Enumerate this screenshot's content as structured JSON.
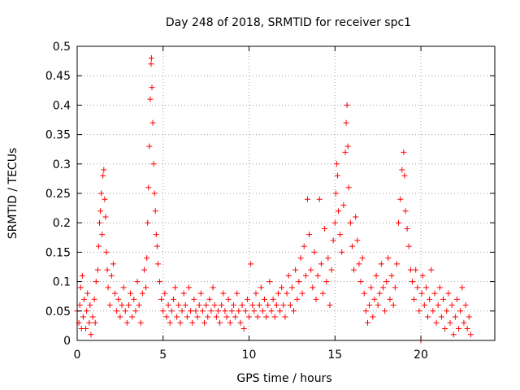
{
  "chart_data": {
    "type": "scatter",
    "title": "Day 248 of 2018, SRMTID for receiver spc1",
    "xlabel": "GPS time / hours",
    "ylabel": "SRMTID / TECUs",
    "xlim": [
      0,
      24.3
    ],
    "ylim": [
      0,
      0.5
    ],
    "xticks": [
      0,
      5,
      10,
      15,
      20
    ],
    "xtick_labels": [
      "0",
      "5",
      "10",
      "15",
      "20"
    ],
    "yticks": [
      0,
      0.05,
      0.1,
      0.15,
      0.2,
      0.25,
      0.3,
      0.35,
      0.4,
      0.45,
      0.5
    ],
    "ytick_labels": [
      "0",
      "0.05",
      "0.1",
      "0.15",
      "0.2",
      "0.25",
      "0.3",
      "0.35",
      "0.4",
      "0.45",
      "0.5"
    ],
    "grid": true,
    "marker": "+",
    "color": "#ff0000",
    "series": [
      {
        "name": "spc1",
        "points": [
          [
            0.0,
            0.05
          ],
          [
            0.1,
            0.03
          ],
          [
            0.15,
            0.06
          ],
          [
            0.2,
            0.09
          ],
          [
            0.25,
            0.02
          ],
          [
            0.3,
            0.11
          ],
          [
            0.35,
            0.04
          ],
          [
            0.4,
            0.07
          ],
          [
            0.5,
            0.02
          ],
          [
            0.55,
            0.05
          ],
          [
            0.6,
            0.08
          ],
          [
            0.7,
            0.03
          ],
          [
            0.75,
            0.06
          ],
          [
            0.8,
            0.01
          ],
          [
            0.9,
            0.04
          ],
          [
            1.0,
            0.07
          ],
          [
            1.05,
            0.03
          ],
          [
            1.1,
            0.1
          ],
          [
            1.2,
            0.12
          ],
          [
            1.25,
            0.16
          ],
          [
            1.3,
            0.2
          ],
          [
            1.35,
            0.22
          ],
          [
            1.4,
            0.25
          ],
          [
            1.45,
            0.18
          ],
          [
            1.5,
            0.28
          ],
          [
            1.55,
            0.29
          ],
          [
            1.6,
            0.24
          ],
          [
            1.65,
            0.21
          ],
          [
            1.7,
            0.15
          ],
          [
            1.75,
            0.12
          ],
          [
            1.8,
            0.09
          ],
          [
            1.9,
            0.06
          ],
          [
            2.0,
            0.11
          ],
          [
            2.1,
            0.13
          ],
          [
            2.2,
            0.08
          ],
          [
            2.3,
            0.05
          ],
          [
            2.4,
            0.07
          ],
          [
            2.5,
            0.04
          ],
          [
            2.6,
            0.06
          ],
          [
            2.7,
            0.09
          ],
          [
            2.8,
            0.05
          ],
          [
            2.9,
            0.03
          ],
          [
            3.0,
            0.06
          ],
          [
            3.1,
            0.08
          ],
          [
            3.2,
            0.04
          ],
          [
            3.3,
            0.07
          ],
          [
            3.4,
            0.05
          ],
          [
            3.5,
            0.1
          ],
          [
            3.6,
            0.06
          ],
          [
            3.7,
            0.03
          ],
          [
            3.8,
            0.08
          ],
          [
            3.9,
            0.12
          ],
          [
            4.0,
            0.09
          ],
          [
            4.05,
            0.14
          ],
          [
            4.1,
            0.2
          ],
          [
            4.15,
            0.26
          ],
          [
            4.2,
            0.33
          ],
          [
            4.25,
            0.41
          ],
          [
            4.3,
            0.47
          ],
          [
            4.32,
            0.48
          ],
          [
            4.35,
            0.43
          ],
          [
            4.4,
            0.37
          ],
          [
            4.45,
            0.3
          ],
          [
            4.5,
            0.25
          ],
          [
            4.55,
            0.22
          ],
          [
            4.6,
            0.18
          ],
          [
            4.65,
            0.16
          ],
          [
            4.7,
            0.13
          ],
          [
            4.8,
            0.1
          ],
          [
            4.9,
            0.07
          ],
          [
            5.0,
            0.05
          ],
          [
            5.1,
            0.08
          ],
          [
            5.2,
            0.04
          ],
          [
            5.3,
            0.06
          ],
          [
            5.4,
            0.03
          ],
          [
            5.5,
            0.05
          ],
          [
            5.6,
            0.07
          ],
          [
            5.7,
            0.09
          ],
          [
            5.8,
            0.04
          ],
          [
            5.9,
            0.06
          ],
          [
            6.0,
            0.03
          ],
          [
            6.1,
            0.05
          ],
          [
            6.2,
            0.08
          ],
          [
            6.3,
            0.06
          ],
          [
            6.4,
            0.04
          ],
          [
            6.5,
            0.09
          ],
          [
            6.6,
            0.05
          ],
          [
            6.7,
            0.03
          ],
          [
            6.8,
            0.07
          ],
          [
            6.9,
            0.05
          ],
          [
            7.0,
            0.04
          ],
          [
            7.1,
            0.06
          ],
          [
            7.2,
            0.08
          ],
          [
            7.3,
            0.05
          ],
          [
            7.4,
            0.03
          ],
          [
            7.5,
            0.06
          ],
          [
            7.6,
            0.04
          ],
          [
            7.7,
            0.07
          ],
          [
            7.8,
            0.05
          ],
          [
            7.9,
            0.09
          ],
          [
            8.0,
            0.06
          ],
          [
            8.1,
            0.04
          ],
          [
            8.2,
            0.05
          ],
          [
            8.3,
            0.03
          ],
          [
            8.4,
            0.06
          ],
          [
            8.5,
            0.08
          ],
          [
            8.6,
            0.05
          ],
          [
            8.7,
            0.04
          ],
          [
            8.8,
            0.07
          ],
          [
            8.9,
            0.03
          ],
          [
            9.0,
            0.05
          ],
          [
            9.1,
            0.06
          ],
          [
            9.2,
            0.04
          ],
          [
            9.3,
            0.08
          ],
          [
            9.4,
            0.05
          ],
          [
            9.5,
            0.03
          ],
          [
            9.6,
            0.06
          ],
          [
            9.7,
            0.02
          ],
          [
            9.8,
            0.05
          ],
          [
            9.9,
            0.07
          ],
          [
            10.0,
            0.04
          ],
          [
            10.1,
            0.13
          ],
          [
            10.2,
            0.06
          ],
          [
            10.3,
            0.05
          ],
          [
            10.4,
            0.08
          ],
          [
            10.5,
            0.04
          ],
          [
            10.6,
            0.06
          ],
          [
            10.7,
            0.09
          ],
          [
            10.8,
            0.05
          ],
          [
            10.9,
            0.07
          ],
          [
            11.0,
            0.04
          ],
          [
            11.1,
            0.06
          ],
          [
            11.2,
            0.1
          ],
          [
            11.3,
            0.05
          ],
          [
            11.4,
            0.07
          ],
          [
            11.5,
            0.04
          ],
          [
            11.6,
            0.06
          ],
          [
            11.7,
            0.08
          ],
          [
            11.8,
            0.05
          ],
          [
            11.9,
            0.09
          ],
          [
            12.0,
            0.06
          ],
          [
            12.1,
            0.04
          ],
          [
            12.2,
            0.08
          ],
          [
            12.3,
            0.11
          ],
          [
            12.4,
            0.06
          ],
          [
            12.5,
            0.09
          ],
          [
            12.6,
            0.05
          ],
          [
            12.7,
            0.12
          ],
          [
            12.8,
            0.07
          ],
          [
            12.9,
            0.1
          ],
          [
            13.0,
            0.14
          ],
          [
            13.1,
            0.08
          ],
          [
            13.2,
            0.16
          ],
          [
            13.3,
            0.11
          ],
          [
            13.4,
            0.24
          ],
          [
            13.5,
            0.18
          ],
          [
            13.6,
            0.12
          ],
          [
            13.7,
            0.09
          ],
          [
            13.8,
            0.15
          ],
          [
            13.9,
            0.07
          ],
          [
            14.0,
            0.11
          ],
          [
            14.1,
            0.24
          ],
          [
            14.2,
            0.13
          ],
          [
            14.3,
            0.08
          ],
          [
            14.4,
            0.19
          ],
          [
            14.5,
            0.1
          ],
          [
            14.6,
            0.14
          ],
          [
            14.7,
            0.06
          ],
          [
            14.8,
            0.12
          ],
          [
            14.9,
            0.17
          ],
          [
            15.0,
            0.2
          ],
          [
            15.05,
            0.25
          ],
          [
            15.1,
            0.3
          ],
          [
            15.15,
            0.28
          ],
          [
            15.2,
            0.22
          ],
          [
            15.3,
            0.18
          ],
          [
            15.4,
            0.15
          ],
          [
            15.5,
            0.23
          ],
          [
            15.6,
            0.32
          ],
          [
            15.65,
            0.37
          ],
          [
            15.7,
            0.4
          ],
          [
            15.75,
            0.33
          ],
          [
            15.8,
            0.26
          ],
          [
            15.9,
            0.2
          ],
          [
            16.0,
            0.16
          ],
          [
            16.1,
            0.12
          ],
          [
            16.2,
            0.21
          ],
          [
            16.3,
            0.17
          ],
          [
            16.4,
            0.13
          ],
          [
            16.5,
            0.1
          ],
          [
            16.6,
            0.14
          ],
          [
            16.7,
            0.08
          ],
          [
            16.8,
            0.05
          ],
          [
            16.9,
            0.03
          ],
          [
            17.0,
            0.06
          ],
          [
            17.1,
            0.09
          ],
          [
            17.2,
            0.04
          ],
          [
            17.3,
            0.07
          ],
          [
            17.4,
            0.11
          ],
          [
            17.5,
            0.06
          ],
          [
            17.6,
            0.08
          ],
          [
            17.7,
            0.13
          ],
          [
            17.8,
            0.09
          ],
          [
            17.9,
            0.05
          ],
          [
            18.0,
            0.1
          ],
          [
            18.1,
            0.14
          ],
          [
            18.2,
            0.07
          ],
          [
            18.3,
            0.11
          ],
          [
            18.4,
            0.06
          ],
          [
            18.5,
            0.09
          ],
          [
            18.6,
            0.13
          ],
          [
            18.7,
            0.2
          ],
          [
            18.8,
            0.24
          ],
          [
            18.9,
            0.29
          ],
          [
            19.0,
            0.32
          ],
          [
            19.05,
            0.28
          ],
          [
            19.1,
            0.22
          ],
          [
            19.2,
            0.19
          ],
          [
            19.3,
            0.16
          ],
          [
            19.4,
            0.12
          ],
          [
            19.5,
            0.1
          ],
          [
            19.6,
            0.07
          ],
          [
            19.7,
            0.12
          ],
          [
            19.8,
            0.09
          ],
          [
            19.9,
            0.05
          ],
          [
            20.0,
            0.0
          ],
          [
            20.05,
            0.08
          ],
          [
            20.1,
            0.11
          ],
          [
            20.2,
            0.06
          ],
          [
            20.3,
            0.09
          ],
          [
            20.4,
            0.04
          ],
          [
            20.5,
            0.07
          ],
          [
            20.6,
            0.12
          ],
          [
            20.7,
            0.05
          ],
          [
            20.8,
            0.08
          ],
          [
            20.9,
            0.03
          ],
          [
            21.0,
            0.06
          ],
          [
            21.1,
            0.09
          ],
          [
            21.2,
            0.04
          ],
          [
            21.3,
            0.07
          ],
          [
            21.4,
            0.02
          ],
          [
            21.5,
            0.05
          ],
          [
            21.6,
            0.08
          ],
          [
            21.7,
            0.03
          ],
          [
            21.8,
            0.06
          ],
          [
            21.9,
            0.01
          ],
          [
            22.0,
            0.04
          ],
          [
            22.1,
            0.07
          ],
          [
            22.2,
            0.02
          ],
          [
            22.3,
            0.05
          ],
          [
            22.4,
            0.09
          ],
          [
            22.5,
            0.03
          ],
          [
            22.6,
            0.06
          ],
          [
            22.7,
            0.02
          ],
          [
            22.8,
            0.04
          ],
          [
            22.9,
            0.01
          ]
        ]
      }
    ]
  }
}
